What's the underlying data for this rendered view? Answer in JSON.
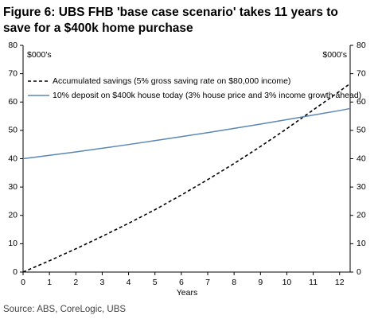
{
  "chart_data": {
    "type": "line",
    "title": [
      "Figure 6: UBS FHB 'base case scenario' takes 11 years to",
      "save for a $400k home purchase"
    ],
    "ylabel": "$000's",
    "y2label": "$000's",
    "xlabel": "Years",
    "source": "Source: ABS, CoreLogic, UBS",
    "x": [
      0,
      1,
      2,
      3,
      4,
      5,
      6,
      7,
      8,
      9,
      10,
      11,
      12,
      12.4
    ],
    "series": [
      {
        "name": "Accumulated savings (5% gross saving rate on $80,000 income)",
        "color": "#000000",
        "dash": true,
        "values": [
          0,
          4,
          8.2,
          12.6,
          17.2,
          22,
          27.2,
          32.6,
          38.3,
          44.3,
          50.6,
          57.2,
          63.8,
          66.5
        ]
      },
      {
        "name": "10% deposit on $400k house today (3% house price and 3% income growth ahead)",
        "color": "#5b87b5",
        "dash": false,
        "values": [
          40,
          41.2,
          42.4,
          43.7,
          45,
          46.4,
          47.8,
          49.2,
          50.7,
          52.2,
          53.8,
          55.4,
          57,
          57.7
        ]
      }
    ],
    "xlim": [
      0,
      12.4
    ],
    "xticks": [
      0,
      1,
      2,
      3,
      4,
      5,
      6,
      7,
      8,
      9,
      10,
      11,
      12
    ],
    "ylim": [
      0,
      80
    ],
    "yticks": [
      0,
      10,
      20,
      30,
      40,
      50,
      60,
      70,
      80
    ],
    "y2lim": [
      0,
      80
    ],
    "y2ticks": [
      0,
      10,
      20,
      30,
      40,
      50,
      60,
      70,
      80
    ],
    "grid": false
  }
}
